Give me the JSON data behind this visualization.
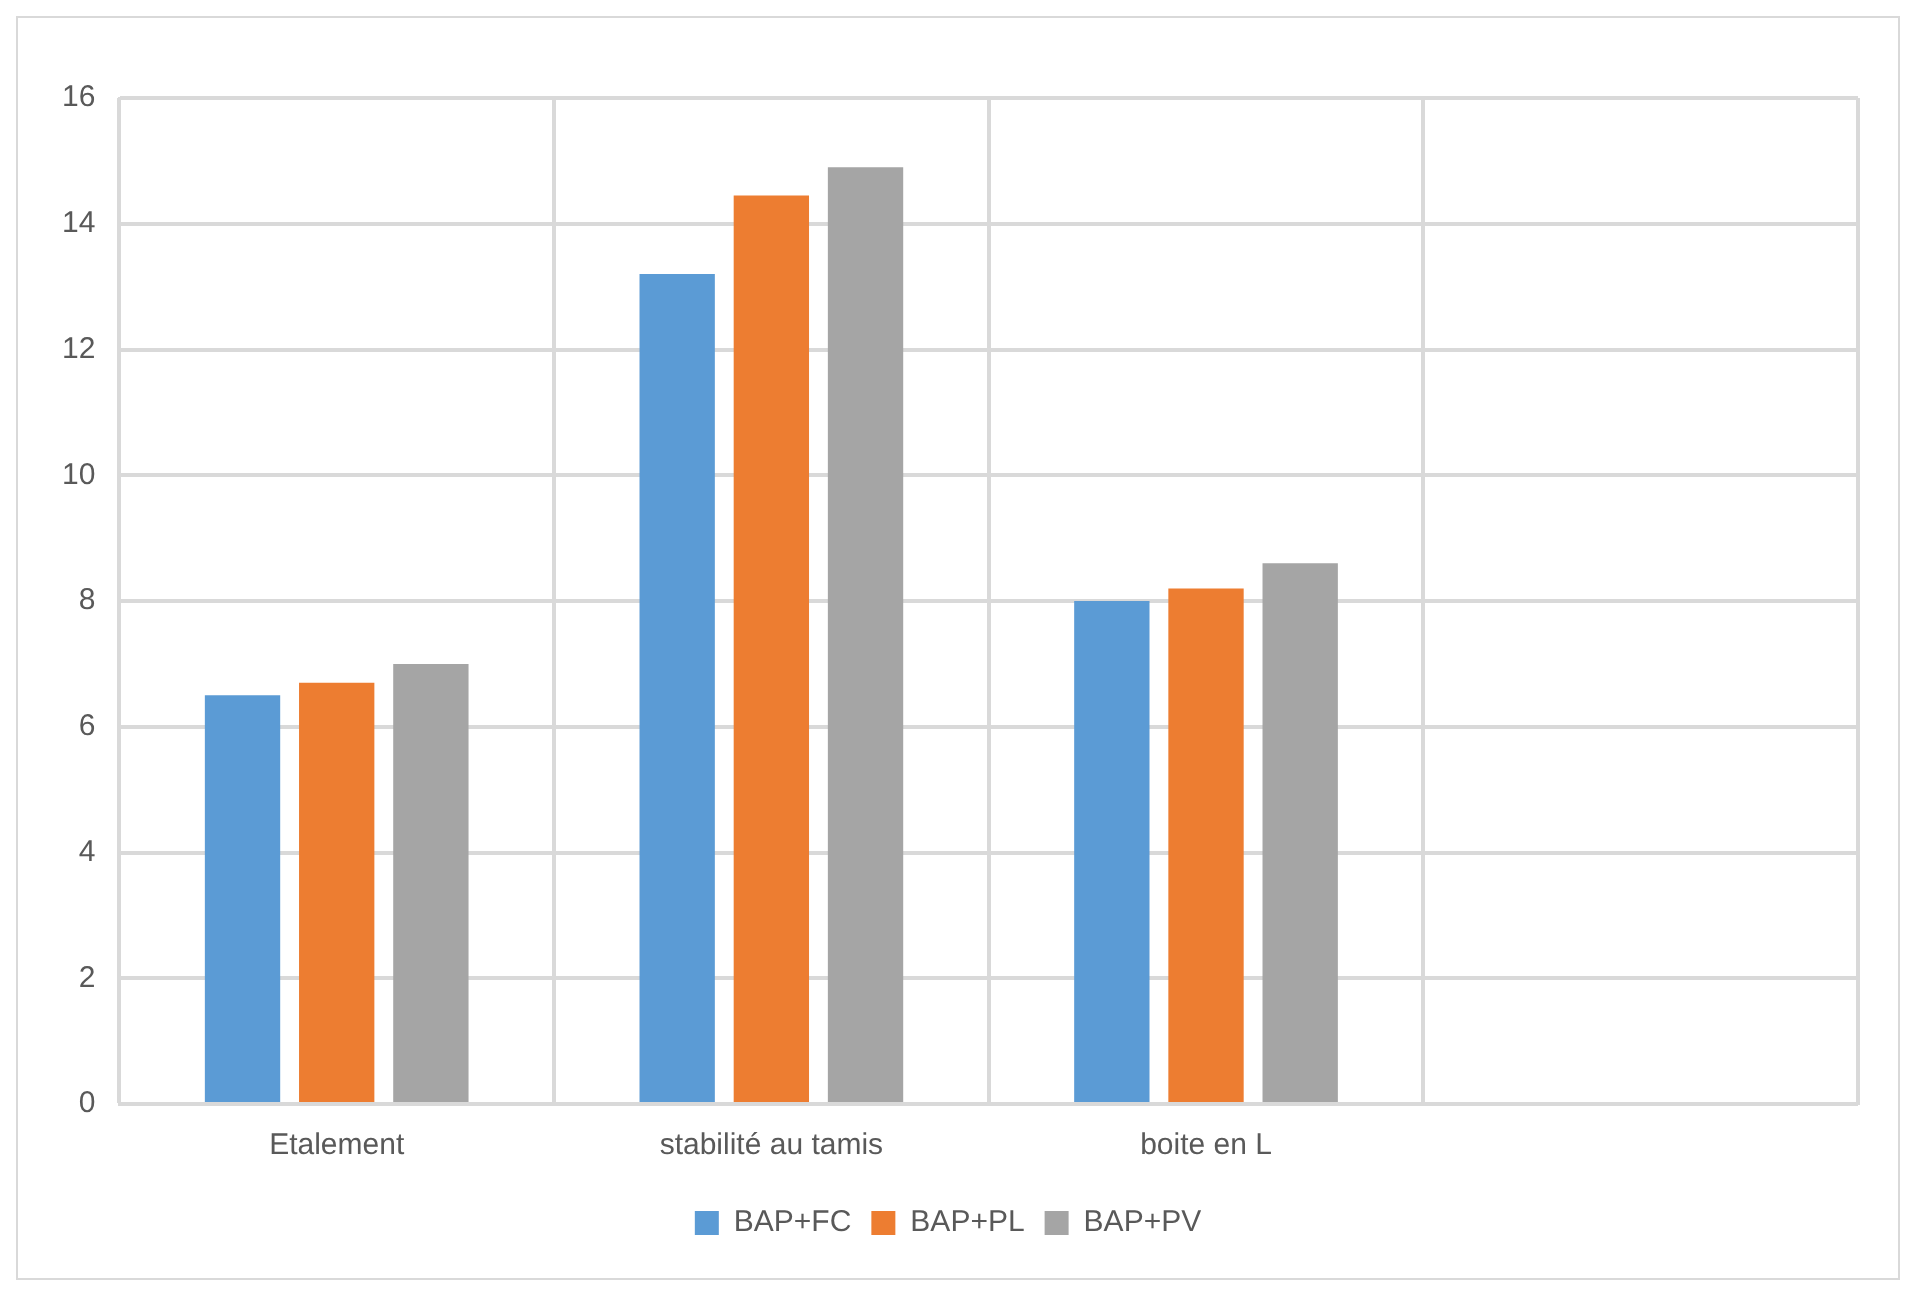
{
  "chart_data": {
    "type": "bar",
    "categories": [
      "Etalement",
      "stabilité au tamis",
      "boite en L",
      null
    ],
    "series": [
      {
        "name": "BAP+FC",
        "color": "#5b9bd5",
        "values": [
          6.5,
          13.2,
          8.0,
          null
        ]
      },
      {
        "name": "BAP+PL",
        "color": "#ed7d31",
        "values": [
          6.7,
          14.45,
          8.2,
          null
        ]
      },
      {
        "name": "BAP+PV",
        "color": "#a5a5a5",
        "values": [
          7.0,
          14.9,
          8.6,
          null
        ]
      }
    ],
    "ylim": [
      0,
      16
    ],
    "yticks": [
      0,
      2,
      4,
      6,
      8,
      10,
      12,
      14,
      16
    ],
    "grid": true,
    "legend": "bottom"
  }
}
